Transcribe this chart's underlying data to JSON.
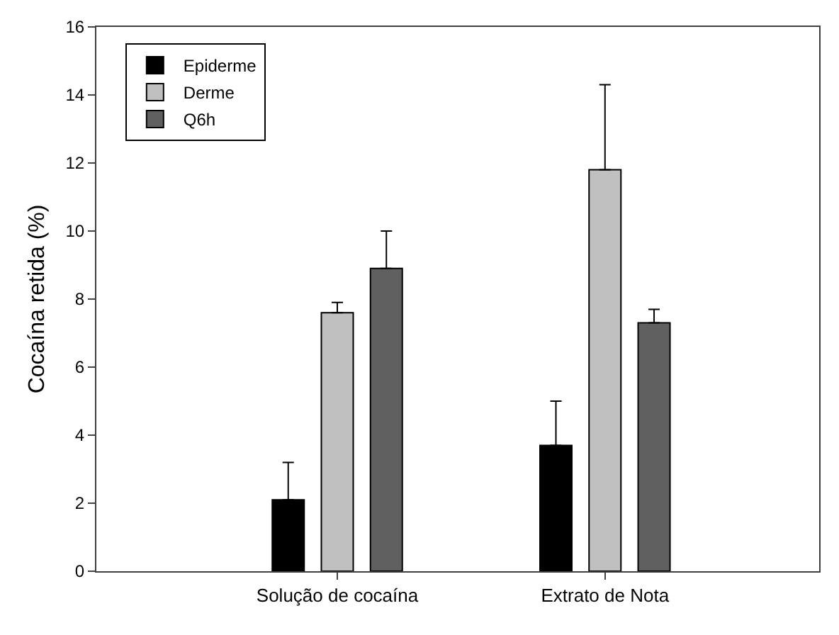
{
  "chart_data": {
    "type": "bar",
    "ylabel": "Cocaína retida (%)",
    "categories": [
      "Solução de cocaína",
      "Extrato de Nota"
    ],
    "series": [
      {
        "name": "Epiderme",
        "color": "#000000",
        "values": [
          2.1,
          3.7
        ],
        "errors": [
          [
            2.1,
            3.2
          ],
          [
            3.7,
            5.0
          ]
        ]
      },
      {
        "name": "Derme",
        "color": "#c0c0c0",
        "values": [
          7.6,
          11.8
        ],
        "errors": [
          [
            7.6,
            7.9
          ],
          [
            11.8,
            14.3
          ]
        ]
      },
      {
        "name": "Q6h",
        "color": "#606060",
        "values": [
          8.9,
          7.3
        ],
        "errors": [
          [
            8.9,
            10.0
          ],
          [
            7.3,
            7.7
          ]
        ]
      }
    ],
    "ylim": [
      0,
      16
    ],
    "yticks": [
      0,
      2,
      4,
      6,
      8,
      10,
      12,
      14,
      16
    ],
    "legend": "top left"
  }
}
